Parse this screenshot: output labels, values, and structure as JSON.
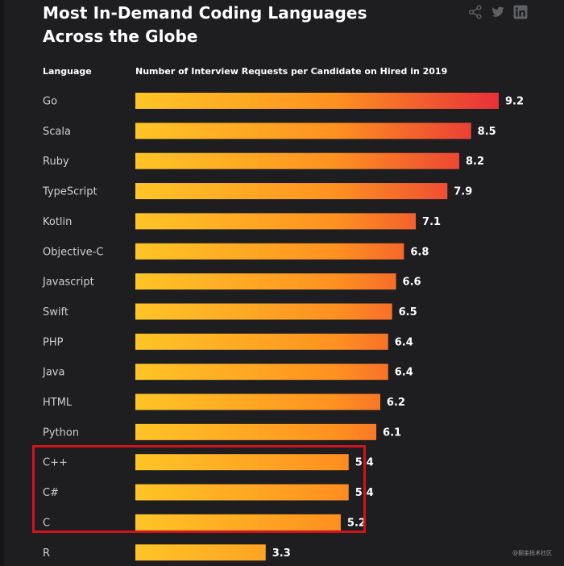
{
  "header": {
    "title_line1": "Most In-Demand Coding Languages",
    "title_line2": "Across the Globe",
    "share_icons": [
      "share-icon",
      "twitter-icon",
      "linkedin-icon"
    ]
  },
  "column_headers": {
    "language": "Language",
    "metric": "Number of Interview Requests per Candidate on Hired in 2019"
  },
  "watermark": "@掘金技术社区",
  "colors": {
    "background": "#1e1e20",
    "bar_start": "#ffc526",
    "bar_end": "#e8303a",
    "highlight_box": "#d0141c"
  },
  "chart_data": {
    "type": "bar",
    "orientation": "horizontal",
    "title": "Most In-Demand Coding Languages Across the Globe",
    "xlabel": "Number of Interview Requests per Candidate on Hired in 2019",
    "ylabel": "Language",
    "categories": [
      "Go",
      "Scala",
      "Ruby",
      "TypeScript",
      "Kotlin",
      "Objective-C",
      "Javascript",
      "Swift",
      "PHP",
      "Java",
      "HTML",
      "Python",
      "C++",
      "C#",
      "C",
      "R"
    ],
    "values": [
      9.2,
      8.5,
      8.2,
      7.9,
      7.1,
      6.8,
      6.6,
      6.5,
      6.4,
      6.4,
      6.2,
      6.1,
      5.4,
      5.4,
      5.2,
      3.3
    ],
    "value_labels": [
      "9.2",
      "8.5",
      "8.2",
      "7.9",
      "7.1",
      "6.8",
      "6.6",
      "6.5",
      "6.4",
      "6.4",
      "6.2",
      "6.1",
      "5.4",
      "5.4",
      "5.2",
      "3.3"
    ],
    "xlim": [
      0,
      9.2
    ],
    "grid": false,
    "highlighted_categories": [
      "C++",
      "C#",
      "C"
    ]
  }
}
